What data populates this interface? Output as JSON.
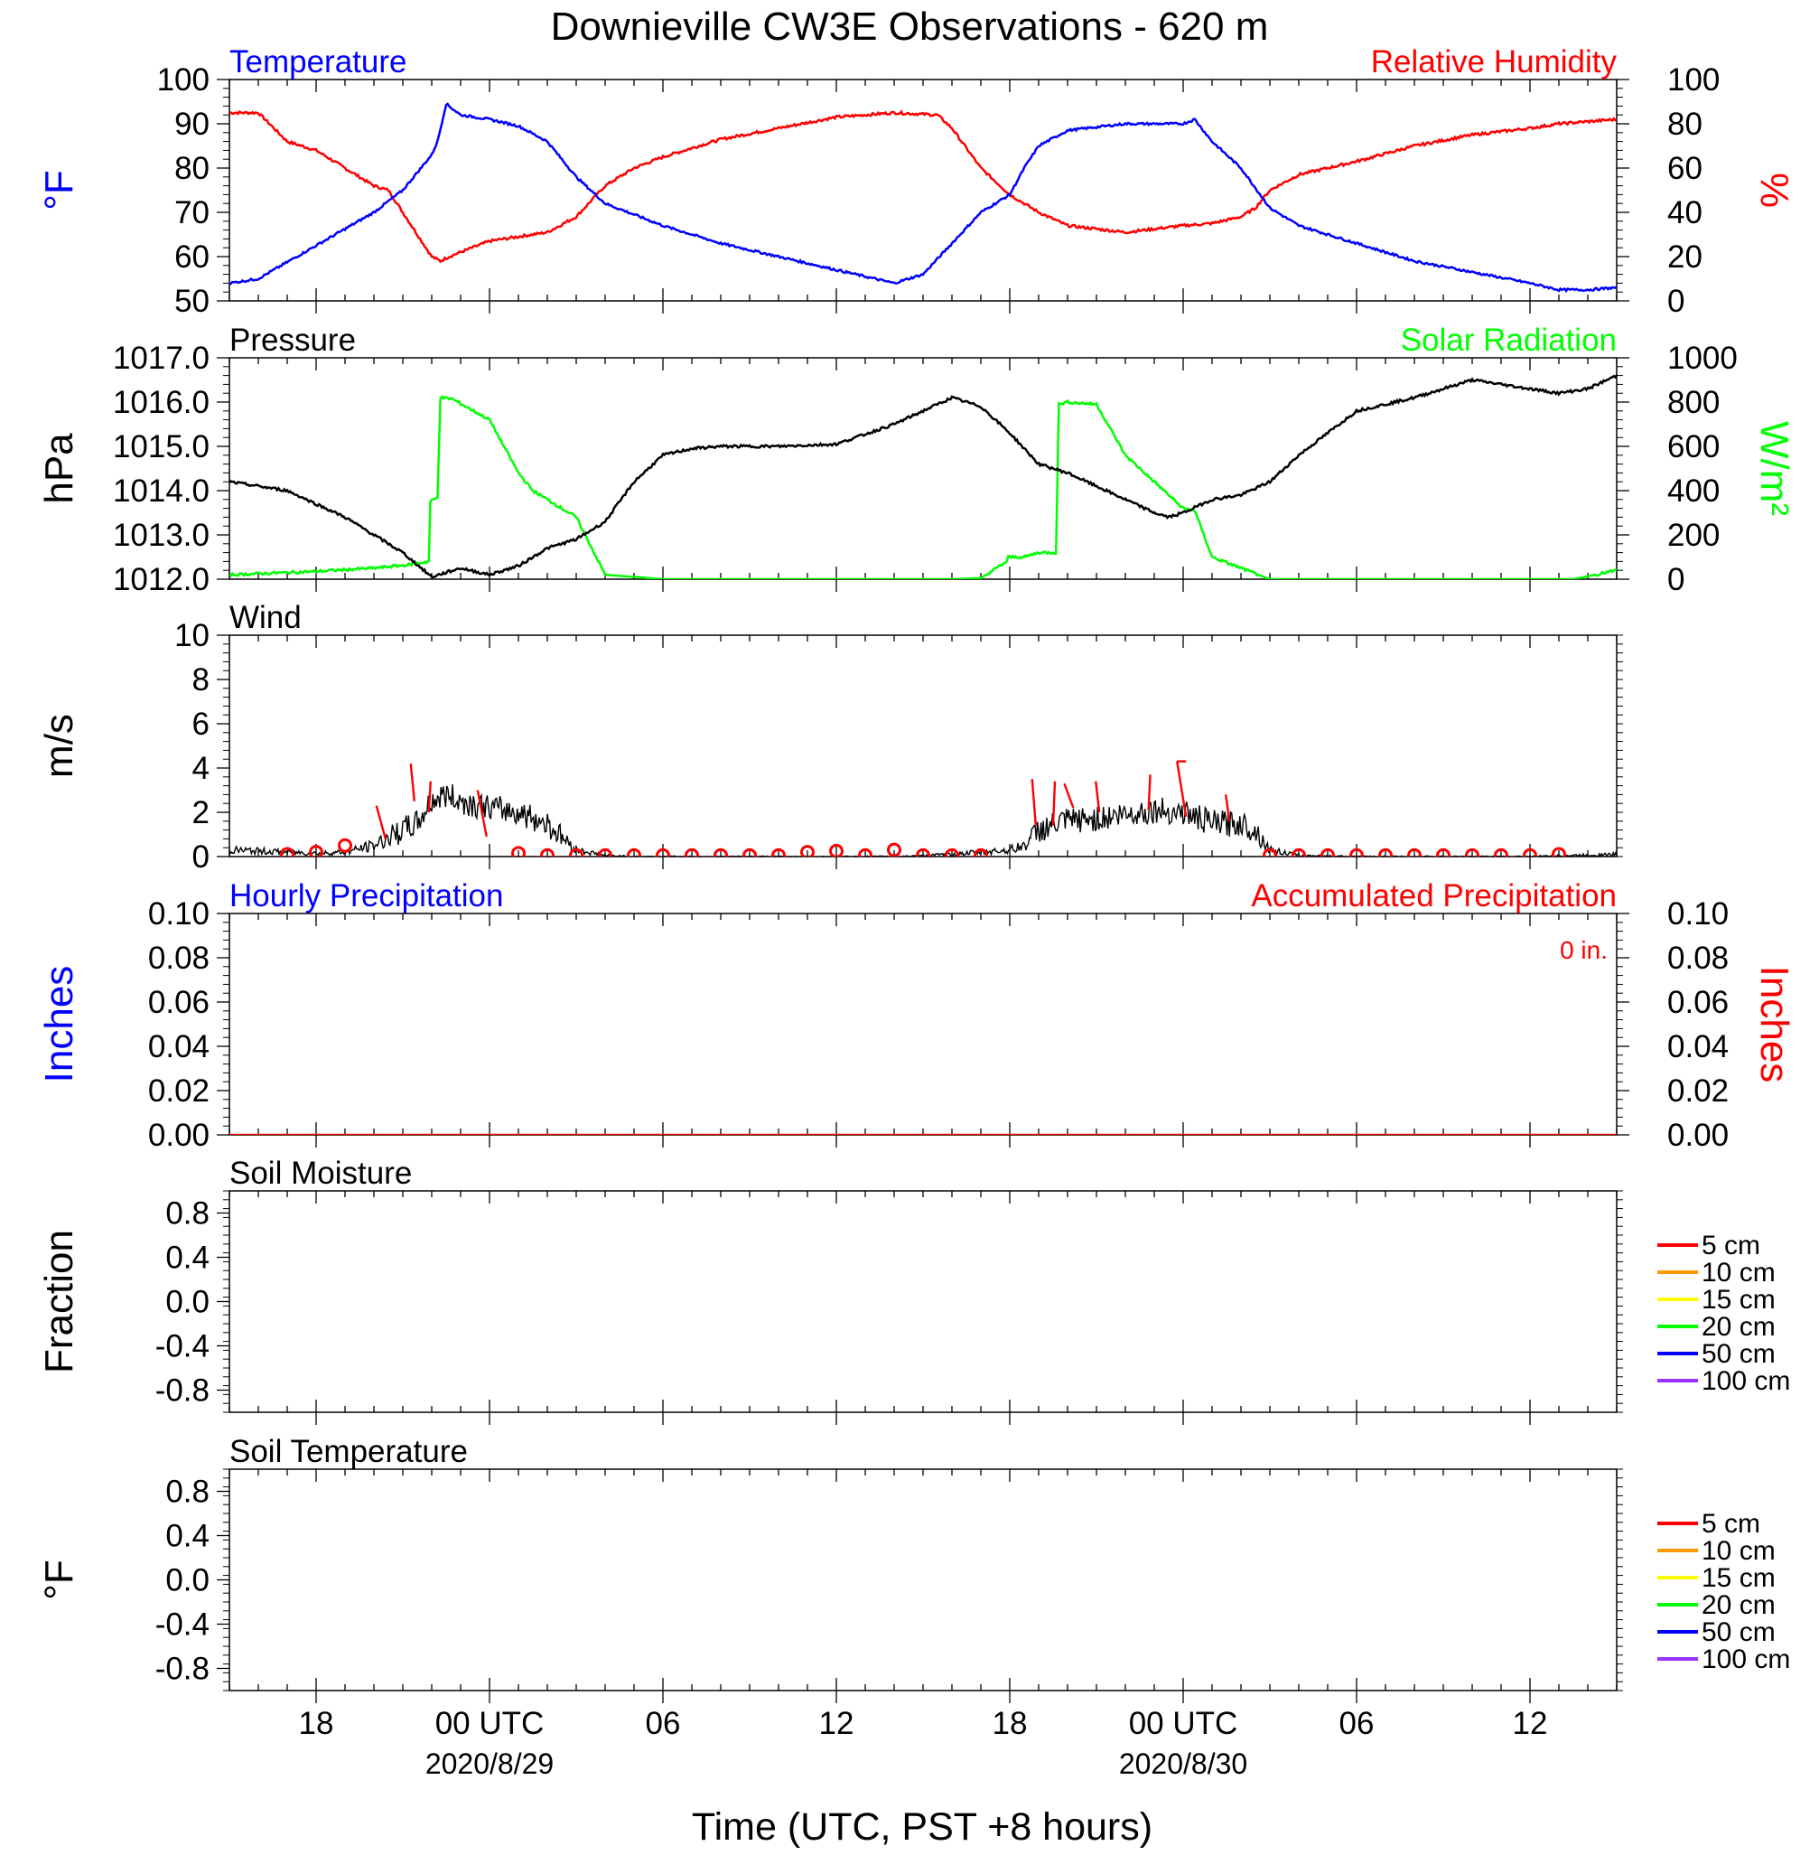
{
  "page": {
    "title": "Downieville CW3E Observations - 620 m",
    "x_axis_label": "Time (UTC, PST +8 hours)",
    "x_ticks": [
      "18",
      "00 UTC",
      "06",
      "12",
      "18",
      "00 UTC",
      "06",
      "12"
    ],
    "x_dates": [
      "2020/8/29",
      "2020/8/30"
    ]
  },
  "colors": {
    "temperature": "#0000ff",
    "humidity": "#ff0000",
    "pressure": "#000000",
    "solar": "#00ff00",
    "wind": "#000000",
    "wind_barb": "#ff0000",
    "precip_hourly": "#0000ff",
    "precip_accum": "#ff0000",
    "depth_colors": [
      "#ff0000",
      "#ff9900",
      "#ffff00",
      "#00ff00",
      "#0000ff",
      "#9933ff"
    ]
  },
  "chart_data": [
    {
      "type": "line",
      "panel": "temperature-humidity",
      "title_left": "Temperature",
      "title_right": "Relative Humidity",
      "ylabel_left": "°F",
      "ylabel_right": "%",
      "ylim_left": [
        50,
        100
      ],
      "ylim_right": [
        0,
        100
      ],
      "yticks_left": [
        "100",
        "90",
        "80",
        "70",
        "60",
        "50"
      ],
      "yticks_right": [
        "100",
        "80",
        "60",
        "40",
        "20",
        "0"
      ],
      "xlim_hours": [
        -9,
        39
      ],
      "series": [
        {
          "name": "Temperature",
          "axis": "left",
          "x_hours": [
            -9,
            -8,
            -6,
            -4,
            -3,
            -2,
            -1.8,
            -1.5,
            -1,
            0,
            1,
            2,
            3,
            4,
            6,
            8,
            10,
            12,
            14,
            15,
            16,
            17,
            18,
            18.5,
            19,
            20,
            22,
            24,
            24.4,
            25,
            26,
            27,
            28,
            30,
            32,
            34,
            36,
            37,
            38,
            39
          ],
          "values": [
            54,
            55,
            62.5,
            70,
            75,
            83,
            86,
            94.5,
            92,
            91,
            89.5,
            86,
            78,
            72,
            67,
            63,
            60,
            57,
            54,
            56,
            63,
            70,
            74,
            80,
            85,
            88.5,
            90,
            90,
            91,
            86,
            80,
            71,
            67,
            63,
            59,
            56.5,
            54,
            52.5,
            52.5,
            53
          ]
        },
        {
          "name": "Relative Humidity",
          "axis": "right",
          "x_hours": [
            -9,
            -8,
            -7,
            -6,
            -4,
            -3.5,
            -2,
            -1.7,
            -1.4,
            -1,
            0,
            2,
            3,
            4,
            5,
            6,
            8,
            10,
            12,
            14,
            15.5,
            16,
            17,
            18,
            19,
            20,
            22,
            24,
            25,
            26,
            26.5,
            27,
            28,
            30,
            32,
            34,
            36,
            37,
            38,
            39
          ],
          "values": [
            85,
            85,
            72,
            68,
            52,
            50,
            20,
            18,
            20,
            22,
            27,
            31,
            38,
            52,
            60,
            65,
            73,
            78,
            83,
            85,
            84,
            78,
            60,
            48,
            40,
            34,
            31,
            34,
            35,
            38,
            42,
            50,
            57,
            63,
            70,
            75,
            78,
            80,
            81,
            82
          ]
        }
      ]
    },
    {
      "type": "line",
      "panel": "pressure-solar",
      "title_left": "Pressure",
      "title_right": "Solar Radiation",
      "ylabel_left": "hPa",
      "ylabel_right": "W/m²",
      "ylim_left": [
        1012,
        1017
      ],
      "ylim_right": [
        0,
        1000
      ],
      "yticks_left": [
        "1017.0",
        "1016.0",
        "1015.0",
        "1014.0",
        "1013.0",
        "1012.0"
      ],
      "yticks_right": [
        "1000",
        "800",
        "600",
        "400",
        "200",
        "0"
      ],
      "xlim_hours": [
        -9,
        39
      ],
      "series": [
        {
          "name": "Pressure",
          "axis": "left",
          "x_hours": [
            -9,
            -7,
            -5,
            -3,
            -2,
            -1,
            0,
            1,
            2,
            3,
            4,
            5,
            6,
            7,
            8,
            10,
            12,
            14,
            15,
            16,
            17,
            18,
            19,
            20,
            21,
            22,
            23,
            23.5,
            24,
            25,
            26,
            27,
            28,
            30,
            32,
            34,
            36,
            37,
            38,
            39
          ],
          "values": [
            1014.2,
            1014.0,
            1013.4,
            1012.6,
            1012.05,
            1012.25,
            1012.1,
            1012.3,
            1012.7,
            1012.9,
            1013.3,
            1014.2,
            1014.8,
            1014.95,
            1015.0,
            1015.0,
            1015.05,
            1015.5,
            1015.8,
            1016.1,
            1015.9,
            1015.3,
            1014.6,
            1014.4,
            1014.1,
            1013.8,
            1013.5,
            1013.4,
            1013.5,
            1013.8,
            1013.9,
            1014.2,
            1014.8,
            1015.8,
            1016.1,
            1016.5,
            1016.3,
            1016.2,
            1016.3,
            1016.6
          ]
        },
        {
          "name": "Solar Radiation",
          "axis": "right",
          "x_hours": [
            -9,
            -6,
            -4,
            -2.8,
            -2.1,
            -2.05,
            -1.8,
            -1.7,
            -1.3,
            0,
            1,
            1.5,
            2,
            3,
            4,
            6,
            8,
            10,
            12,
            14,
            16,
            17,
            17.9,
            17.95,
            18.5,
            19,
            19.6,
            19.7,
            20,
            21,
            22,
            23,
            24,
            24.4,
            25,
            27,
            30,
            34,
            37.5,
            39
          ],
          "values": [
            20,
            35,
            50,
            65,
            80,
            350,
            370,
            820,
            815,
            720,
            480,
            400,
            360,
            280,
            20,
            0,
            0,
            0,
            0,
            0,
            0,
            5,
            80,
            100,
            100,
            120,
            120,
            790,
            800,
            790,
            560,
            440,
            320,
            310,
            100,
            0,
            0,
            0,
            0,
            40
          ]
        }
      ]
    },
    {
      "type": "line",
      "panel": "wind",
      "title_left": "Wind",
      "ylabel_left": "m/s",
      "ylim_left": [
        0,
        10
      ],
      "yticks_left": [
        "10",
        "8",
        "6",
        "4",
        "2",
        "0"
      ],
      "xlim_hours": [
        -9,
        39
      ],
      "series": [
        {
          "name": "Wind",
          "axis": "left",
          "x_hours": [
            -9,
            -7,
            -6,
            -5,
            -4,
            -3,
            -2.5,
            -2,
            -1.5,
            -1,
            0,
            1,
            2,
            3,
            4,
            5,
            6,
            8,
            10,
            12,
            14,
            16,
            18,
            18.5,
            19,
            20,
            21,
            22,
            23,
            24,
            25,
            26,
            26.5,
            27,
            28,
            30,
            33,
            36,
            39
          ],
          "values": [
            0.3,
            0.2,
            0.15,
            0.2,
            0.5,
            1.2,
            1.5,
            2.5,
            2.8,
            2.5,
            2.2,
            2.0,
            1.5,
            0.3,
            0.05,
            0,
            0,
            0,
            0,
            0,
            0,
            0.1,
            0.3,
            0.5,
            1.2,
            1.6,
            1.7,
            1.9,
            2.1,
            2.0,
            1.5,
            1.5,
            1.2,
            0.3,
            0.05,
            0,
            0,
            0,
            0.1
          ]
        }
      ],
      "barb_hours": [
        -3.6,
        -2.6,
        -2.1,
        -0.1,
        18.9,
        19.5,
        20.2,
        21.1,
        22.8,
        24.1,
        25.6
      ],
      "barb_base_speed": [
        0.8,
        2.5,
        2.0,
        0.9,
        1.4,
        1.4,
        2.2,
        2.0,
        2.1,
        1.8,
        1.6
      ],
      "barb_tip_speed": [
        2.3,
        4.2,
        3.4,
        3.0,
        3.5,
        3.4,
        3.3,
        3.4,
        3.7,
        4.3,
        2.8
      ],
      "circle_hours": [
        -7,
        -6,
        -5,
        1,
        2,
        3,
        4,
        5,
        6,
        7,
        8,
        9,
        10,
        11,
        12,
        13,
        14,
        15,
        16,
        17,
        27,
        28,
        29,
        30,
        31,
        32,
        33,
        34,
        35,
        36,
        37
      ],
      "circle_values": [
        0.1,
        0.2,
        0.5,
        0.15,
        0.05,
        0.05,
        0.05,
        0.05,
        0.05,
        0.05,
        0.05,
        0.05,
        0.05,
        0.2,
        0.25,
        0.05,
        0.3,
        0.05,
        0.05,
        0.05,
        0.05,
        0.05,
        0.05,
        0.05,
        0.05,
        0.05,
        0.05,
        0.05,
        0.05,
        0.05,
        0.1
      ]
    },
    {
      "type": "line",
      "panel": "precipitation",
      "title_left": "Hourly Precipitation",
      "title_right": "Accumulated Precipitation",
      "annotation": "0 in.",
      "ylabel_left": "Inches",
      "ylabel_right": "Inches",
      "ylim_left": [
        0,
        0.1
      ],
      "ylim_right": [
        0,
        0.1
      ],
      "yticks_left": [
        "0.10",
        "0.08",
        "0.06",
        "0.04",
        "0.02",
        "0.00"
      ],
      "yticks_right": [
        "0.10",
        "0.08",
        "0.06",
        "0.04",
        "0.02",
        "0.00"
      ],
      "xlim_hours": [
        -9,
        39
      ],
      "series": [
        {
          "name": "Accumulated Precipitation",
          "axis": "right",
          "x_hours": [
            -9,
            39
          ],
          "values": [
            0,
            0
          ]
        }
      ]
    },
    {
      "type": "line",
      "panel": "soil-moisture",
      "title_left": "Soil Moisture",
      "ylabel_left": "Fraction",
      "ylim_left": [
        -1,
        1
      ],
      "yticks_left": [
        "0.8",
        "0.4",
        "0.0",
        "-0.4",
        "-0.8"
      ],
      "xlim_hours": [
        -9,
        39
      ],
      "legend": [
        "5 cm",
        "10 cm",
        "15 cm",
        "20 cm",
        "50 cm",
        "100 cm"
      ],
      "series": []
    },
    {
      "type": "line",
      "panel": "soil-temperature",
      "title_left": "Soil Temperature",
      "ylabel_left": "°F",
      "ylim_left": [
        -1,
        1
      ],
      "yticks_left": [
        "0.8",
        "0.4",
        "0.0",
        "-0.4",
        "-0.8"
      ],
      "xlim_hours": [
        -9,
        39
      ],
      "legend": [
        "5 cm",
        "10 cm",
        "15 cm",
        "20 cm",
        "50 cm",
        "100 cm"
      ],
      "series": []
    }
  ]
}
